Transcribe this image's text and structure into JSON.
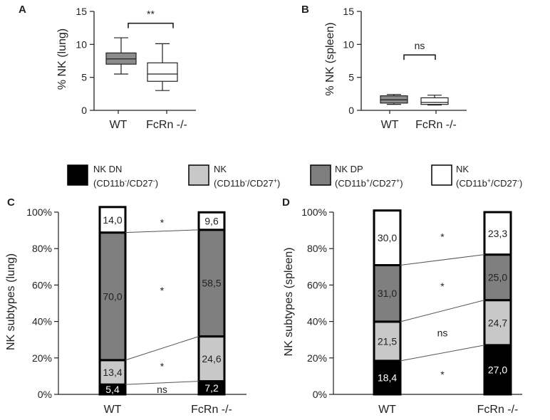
{
  "chart_data": [
    {
      "panel": "A",
      "type": "box",
      "ylabel": "% NK (lung)",
      "ylim": [
        0,
        15
      ],
      "yticks": [
        "0",
        "5",
        "10",
        "15"
      ],
      "categories": [
        "WT",
        "FcRn -/-"
      ],
      "boxes": [
        {
          "name": "WT",
          "min": 5.5,
          "q1": 7.0,
          "median": 7.8,
          "q3": 8.7,
          "max": 11.0,
          "fill": "#8c8c8c"
        },
        {
          "name": "FcRn -/-",
          "min": 3.0,
          "q1": 4.4,
          "median": 5.5,
          "q3": 7.2,
          "max": 10.1,
          "fill": "#ffffff"
        }
      ],
      "significance": {
        "label": "**",
        "y": 13.2
      }
    },
    {
      "panel": "B",
      "type": "box",
      "ylabel": "% NK (spleen)",
      "ylim": [
        0,
        15
      ],
      "yticks": [
        "0",
        "5",
        "10",
        "15"
      ],
      "categories": [
        "WT",
        "FcRn -/-"
      ],
      "boxes": [
        {
          "name": "WT",
          "min": 0.9,
          "q1": 1.1,
          "median": 1.6,
          "q3": 2.2,
          "max": 2.4,
          "fill": "#8c8c8c"
        },
        {
          "name": "FcRn -/-",
          "min": 0.8,
          "q1": 0.9,
          "median": 1.2,
          "q3": 1.9,
          "max": 2.3,
          "fill": "#ffffff"
        }
      ],
      "significance": {
        "label": "ns",
        "y": 8.4
      }
    },
    {
      "panel": "C",
      "type": "stacked-bar",
      "ylabel": "NK subtypes (lung)",
      "ylim": [
        0,
        100
      ],
      "yticks": [
        "0%",
        "20%",
        "40%",
        "60%",
        "80%",
        "100%"
      ],
      "categories": [
        "WT",
        "FcRn -/-"
      ],
      "series": [
        {
          "name": "NK DN",
          "fill": "#000000",
          "text_color": "#ffffff",
          "values": [
            5.4,
            7.2
          ],
          "labels": [
            "5,4",
            "7,2"
          ]
        },
        {
          "name": "NK (CD11b-/CD27+)",
          "fill": "#c8c8c8",
          "text_color": "#222222",
          "values": [
            13.4,
            24.6
          ],
          "labels": [
            "13,4",
            "24,6"
          ]
        },
        {
          "name": "NK DP",
          "fill": "#7f7f7f",
          "text_color": "#222222",
          "values": [
            70.0,
            58.5
          ],
          "labels": [
            "70,0",
            "58,5"
          ]
        },
        {
          "name": "NK (CD11b+/CD27-)",
          "fill": "#ffffff",
          "text_color": "#222222",
          "values": [
            14.0,
            9.6
          ],
          "labels": [
            "14,0",
            "9,6"
          ]
        }
      ],
      "significance": [
        "ns",
        "*",
        "*",
        "*"
      ]
    },
    {
      "panel": "D",
      "type": "stacked-bar",
      "ylabel": "NK subtypes (spleen)",
      "ylim": [
        0,
        100
      ],
      "yticks": [
        "0%",
        "20%",
        "40%",
        "60%",
        "80%",
        "100%"
      ],
      "categories": [
        "WT",
        "FcRn -/-"
      ],
      "series": [
        {
          "name": "NK DN",
          "fill": "#000000",
          "text_color": "#ffffff",
          "values": [
            18.4,
            27.0
          ],
          "labels": [
            "18,4",
            "27,0"
          ]
        },
        {
          "name": "NK (CD11b-/CD27+)",
          "fill": "#c8c8c8",
          "text_color": "#222222",
          "values": [
            21.5,
            24.7
          ],
          "labels": [
            "21,5",
            "24,7"
          ]
        },
        {
          "name": "NK DP",
          "fill": "#7f7f7f",
          "text_color": "#222222",
          "values": [
            31.0,
            25.0
          ],
          "labels": [
            "31,0",
            "25,0"
          ]
        },
        {
          "name": "NK (CD11b+/CD27-)",
          "fill": "#ffffff",
          "text_color": "#222222",
          "values": [
            30.0,
            23.3
          ],
          "labels": [
            "30,0",
            "23,3"
          ]
        }
      ],
      "significance": [
        "*",
        "ns",
        "*",
        "*"
      ]
    }
  ],
  "legend": [
    {
      "line1": "NK DN",
      "line2": {
        "open": "(CD11b",
        "sup1": "-",
        "mid": "/CD27",
        "sup2": "-",
        "close": ")"
      },
      "fill": "#000000"
    },
    {
      "line1": "NK",
      "line2": {
        "open": "(CD11b",
        "sup1": "-",
        "mid": "/CD27",
        "sup2": "+",
        "close": ")"
      },
      "fill": "#c8c8c8"
    },
    {
      "line1": "NK DP",
      "line2": {
        "open": "(CD11b",
        "sup1": "+",
        "mid": "/CD27",
        "sup2": "+",
        "close": ")"
      },
      "fill": "#7f7f7f"
    },
    {
      "line1": "NK",
      "line2": {
        "open": "(CD11b",
        "sup1": "+",
        "mid": "/CD27",
        "sup2": "-",
        "close": ")"
      },
      "fill": "#ffffff"
    }
  ]
}
